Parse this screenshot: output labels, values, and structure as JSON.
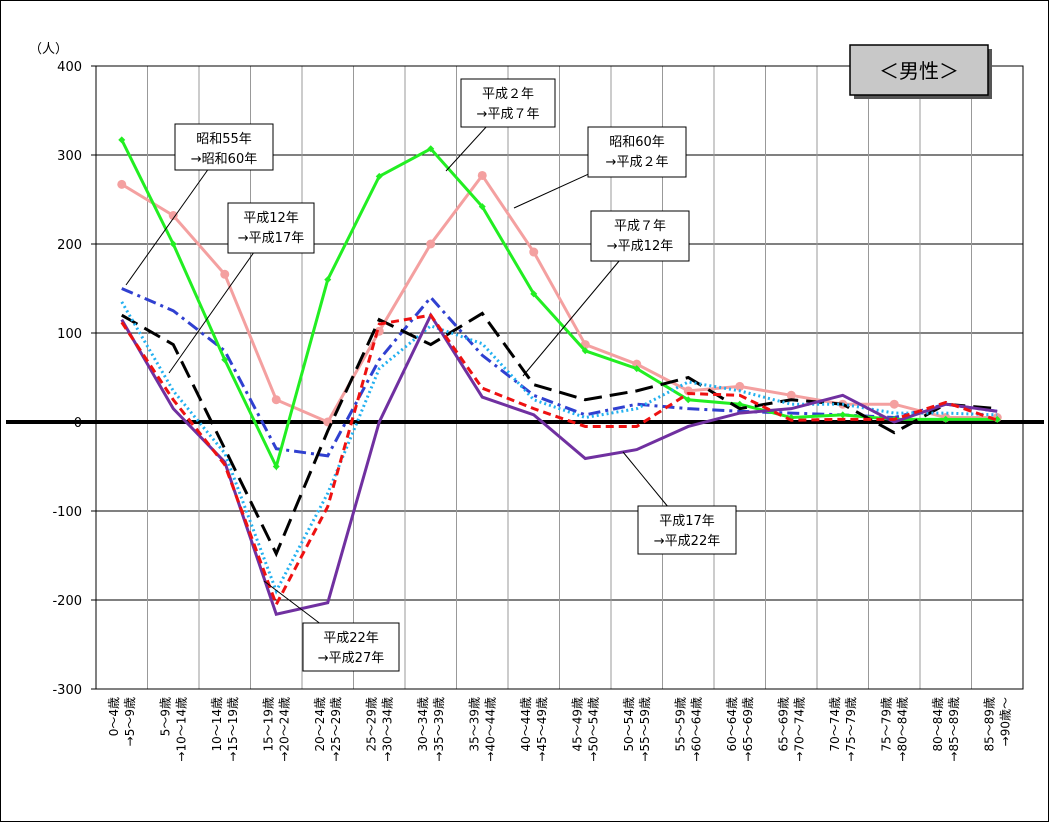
{
  "chart_data": {
    "type": "line",
    "legend_title": "＜男性＞",
    "ylabel": "（人）",
    "ylim": [
      -300,
      400
    ],
    "yticks": [
      400,
      300,
      200,
      100,
      0,
      -100,
      -200,
      -300
    ],
    "grid": true,
    "categories": [
      {
        "line1": "0～4歳",
        "line2": "→5～9歳"
      },
      {
        "line1": "5～9歳",
        "line2": "→10～14歳"
      },
      {
        "line1": "10～14歳",
        "line2": "→15～19歳"
      },
      {
        "line1": "15～19歳",
        "line2": "→20～24歳"
      },
      {
        "line1": "20～24歳",
        "line2": "→25～29歳"
      },
      {
        "line1": "25～29歳",
        "line2": "→30～34歳"
      },
      {
        "line1": "30～34歳",
        "line2": "→35～39歳"
      },
      {
        "line1": "35～39歳",
        "line2": "→40～44歳"
      },
      {
        "line1": "40～44歳",
        "line2": "→45～49歳"
      },
      {
        "line1": "45～49歳",
        "line2": "→50～54歳"
      },
      {
        "line1": "50～54歳",
        "line2": "→55～59歳"
      },
      {
        "line1": "55～59歳",
        "line2": "→60～64歳"
      },
      {
        "line1": "60～64歳",
        "line2": "→65～69歳"
      },
      {
        "line1": "65～69歳",
        "line2": "→70～74歳"
      },
      {
        "line1": "70～74歳",
        "line2": "→75～79歳"
      },
      {
        "line1": "75～79歳",
        "line2": "→80～84歳"
      },
      {
        "line1": "80～84歳",
        "line2": "→85～89歳"
      },
      {
        "line1": "85～89歳",
        "line2": "→90歳～"
      }
    ],
    "series": [
      {
        "name": "昭和55年→昭和60年",
        "label_lines": [
          "昭和55年",
          "→昭和60年"
        ],
        "color": "#3040d0",
        "style": "dashdot",
        "values": [
          150,
          125,
          80,
          -30,
          -38,
          70,
          140,
          75,
          30,
          8,
          20,
          15,
          12,
          10,
          8,
          5,
          20,
          12
        ]
      },
      {
        "name": "昭和60年→平成２年",
        "label_lines": [
          "昭和60年",
          "→平成２年"
        ],
        "color": "#f4a0a0",
        "style": "solid-dots",
        "values": [
          267,
          232,
          166,
          25,
          0,
          102,
          200,
          277,
          191,
          87,
          65,
          35,
          40,
          30,
          20,
          20,
          5,
          5
        ]
      },
      {
        "name": "平成２年→平成７年",
        "label_lines": [
          "平成２年",
          "→平成７年"
        ],
        "color": "#22ee22",
        "style": "solid-diamonds",
        "values": [
          317,
          200,
          70,
          -50,
          160,
          276,
          307,
          242,
          144,
          80,
          60,
          25,
          20,
          5,
          8,
          3,
          3,
          3
        ]
      },
      {
        "name": "平成７年→平成12年",
        "label_lines": [
          "平成７年",
          "→平成12年"
        ],
        "color": "#000000",
        "style": "longdash",
        "values": [
          120,
          87,
          -30,
          -148,
          -10,
          115,
          87,
          122,
          42,
          25,
          35,
          50,
          15,
          25,
          20,
          -12,
          20,
          15
        ]
      },
      {
        "name": "平成12年→平成17年",
        "label_lines": [
          "平成12年",
          "→平成17年"
        ],
        "color": "#22b0f0",
        "style": "dotted",
        "values": [
          135,
          35,
          -35,
          -190,
          -80,
          60,
          108,
          88,
          25,
          5,
          15,
          45,
          35,
          20,
          20,
          10,
          10,
          8
        ]
      },
      {
        "name": "平成17年→平成22年",
        "label_lines": [
          "平成17年",
          "→平成22年"
        ],
        "color": "#7030a0",
        "style": "solid",
        "values": [
          115,
          15,
          -45,
          -216,
          -203,
          0,
          120,
          28,
          8,
          -41,
          -31,
          -5,
          10,
          15,
          30,
          0,
          20,
          12
        ]
      },
      {
        "name": "平成22年→平成27年",
        "label_lines": [
          "平成22年",
          "→平成27年"
        ],
        "color": "#ee1111",
        "style": "dashed",
        "values": [
          112,
          25,
          -48,
          -205,
          -95,
          110,
          120,
          38,
          15,
          -5,
          -5,
          32,
          30,
          2,
          3,
          3,
          22,
          2
        ]
      }
    ]
  }
}
